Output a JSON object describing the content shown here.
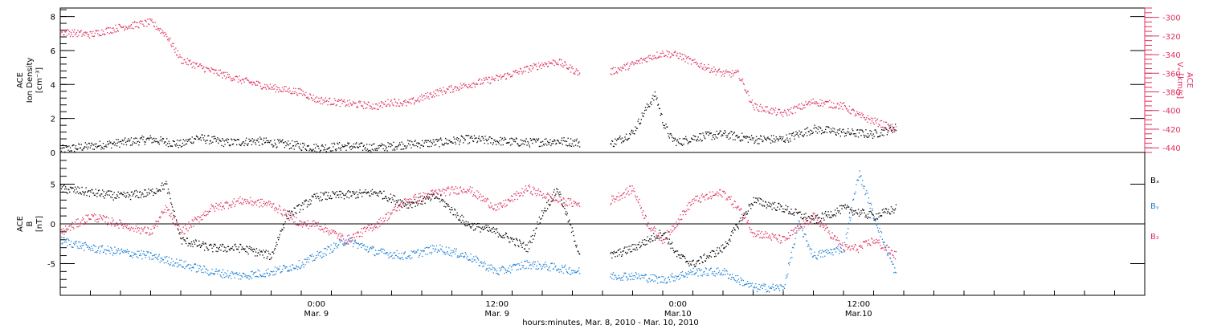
{
  "colors": {
    "black": "#000000",
    "red": "#e0305e",
    "blue": "#1a7fd6"
  },
  "x_axis": {
    "title": "hours:minutes, Mar.  8, 2010 - Mar. 10, 2010",
    "range_hours": [
      -17,
      55
    ],
    "ticks": [
      {
        "hour": 0,
        "time": "0:00",
        "date": "Mar. 9"
      },
      {
        "hour": 12,
        "time": "12:00",
        "date": "Mar. 9"
      },
      {
        "hour": 24,
        "time": "0:00",
        "date": "Mar.10"
      },
      {
        "hour": 36,
        "time": "12:00",
        "date": "Mar.10"
      }
    ]
  },
  "chart_data": [
    {
      "type": "scatter",
      "panel": "top",
      "ylabel_lines": [
        "ACE",
        "Ion Density",
        "[cm⁻³]"
      ],
      "ylim": [
        0,
        8.5
      ],
      "yticks": [
        0,
        2,
        4,
        6,
        8
      ],
      "ylabel_right_lines": [
        "ACE",
        "Vₓ [km/s]"
      ],
      "ylim_right": [
        -445,
        -290
      ],
      "yticks_right": [
        -300,
        -320,
        -340,
        -360,
        -380,
        -400,
        -420,
        -440
      ],
      "series": [
        {
          "color": "black",
          "axis": "left",
          "x": [
            -17,
            -15,
            -13,
            -11,
            -9,
            -8,
            -6,
            -4,
            -2,
            0,
            2,
            4,
            6,
            8,
            10,
            12,
            14,
            16,
            17.5,
            19.5,
            21,
            22,
            22.5,
            23,
            23.5,
            24,
            25,
            27,
            29,
            31,
            33,
            35,
            37,
            38.5
          ],
          "y": [
            0.2,
            0.4,
            0.6,
            0.8,
            0.5,
            0.9,
            0.6,
            0.7,
            0.5,
            0.3,
            0.4,
            0.3,
            0.5,
            0.6,
            0.8,
            0.7,
            0.6,
            0.7,
            0.6,
            0.5,
            1.2,
            2.8,
            3.4,
            1.8,
            0.9,
            0.6,
            0.9,
            1.1,
            0.8,
            0.8,
            1.4,
            1.2,
            1.1,
            1.5
          ],
          "gaps_after_hour": [
            17.5
          ]
        },
        {
          "color": "red",
          "axis": "right",
          "x": [
            -17,
            -15,
            -13,
            -11,
            -10,
            -9,
            -7,
            -5,
            -3,
            -1,
            0,
            2,
            4,
            5,
            6,
            8,
            10,
            12,
            14,
            15,
            16,
            17.5,
            19.5,
            21,
            22,
            23,
            24,
            25,
            27,
            28,
            29,
            31,
            33,
            35,
            36,
            38.5
          ],
          "y": [
            -315,
            -318,
            -310,
            -305,
            -318,
            -345,
            -357,
            -367,
            -375,
            -380,
            -388,
            -392,
            -395,
            -390,
            -392,
            -380,
            -372,
            -365,
            -355,
            -350,
            -347,
            -360,
            -358,
            -350,
            -343,
            -338,
            -340,
            -348,
            -360,
            -360,
            -395,
            -403,
            -390,
            -395,
            -405,
            -420
          ],
          "gaps_after_hour": [
            17.5
          ]
        }
      ]
    },
    {
      "type": "scatter",
      "panel": "bottom",
      "ylabel_lines": [
        "ACE",
        "B",
        "[nT]"
      ],
      "ylim": [
        -9,
        9
      ],
      "yticks": [
        -5,
        0,
        5
      ],
      "zero_line": true,
      "legend": [
        {
          "label": "Bₓ",
          "color": "black"
        },
        {
          "label": "Bᵧ",
          "color": "blue"
        },
        {
          "label": "B₂",
          "color": "red"
        }
      ],
      "series": [
        {
          "color": "black",
          "x": [
            -17,
            -15,
            -13,
            -11,
            -10,
            -9,
            -7,
            -5,
            -3,
            -2,
            0,
            2,
            4,
            6,
            8,
            10,
            12,
            14,
            15,
            16,
            17.5,
            19.5,
            21,
            23,
            24,
            25,
            27,
            29,
            31,
            33,
            35,
            37,
            38.5
          ],
          "y": [
            4.5,
            4,
            3.5,
            4,
            5,
            -2,
            -3,
            -3,
            -4,
            1,
            3.5,
            3.7,
            4,
            2.5,
            3.5,
            0,
            -1,
            -3,
            1.5,
            4.5,
            -4,
            -4,
            -3,
            -1,
            -4,
            -5,
            -3,
            3,
            2,
            0.5,
            2,
            1,
            2
          ],
          "gaps_after_hour": [
            17.5
          ]
        },
        {
          "color": "blue",
          "x": [
            -17,
            -15,
            -13,
            -11,
            -9,
            -7,
            -5,
            -3,
            -1,
            0,
            2,
            4,
            6,
            8,
            10,
            12,
            14,
            16,
            17.5,
            19.5,
            21,
            23,
            25,
            27,
            29,
            31,
            32,
            33,
            35,
            36,
            37,
            38.5
          ],
          "y": [
            -2,
            -3,
            -3.5,
            -4,
            -5,
            -6,
            -6.5,
            -6,
            -5,
            -4,
            -2,
            -3.5,
            -4,
            -3,
            -4,
            -6,
            -5,
            -5.5,
            -6,
            -6.5,
            -6.5,
            -7,
            -6,
            -6,
            -8,
            -8,
            0,
            -4,
            -3,
            6.5,
            1,
            -6.5
          ],
          "gaps_after_hour": [
            17.5
          ]
        },
        {
          "color": "red",
          "x": [
            -17,
            -15,
            -13,
            -11,
            -10,
            -9,
            -7,
            -5,
            -3,
            -1,
            0,
            2,
            4,
            6,
            8,
            10,
            12,
            14,
            16,
            17.5,
            19.5,
            21,
            22,
            23,
            25,
            27,
            28,
            29,
            31,
            33,
            35,
            36,
            37,
            38.5
          ],
          "y": [
            -1,
            1,
            0,
            -1,
            2,
            -1,
            2,
            3,
            2.5,
            0,
            0,
            -2,
            0,
            3,
            4,
            4.5,
            2,
            4.5,
            3,
            2.5,
            3,
            4.5,
            0,
            -2,
            3,
            4,
            2,
            -1,
            -2,
            1,
            -3,
            -3,
            -2,
            -4
          ],
          "gaps_after_hour": [
            17.5
          ]
        }
      ]
    }
  ]
}
